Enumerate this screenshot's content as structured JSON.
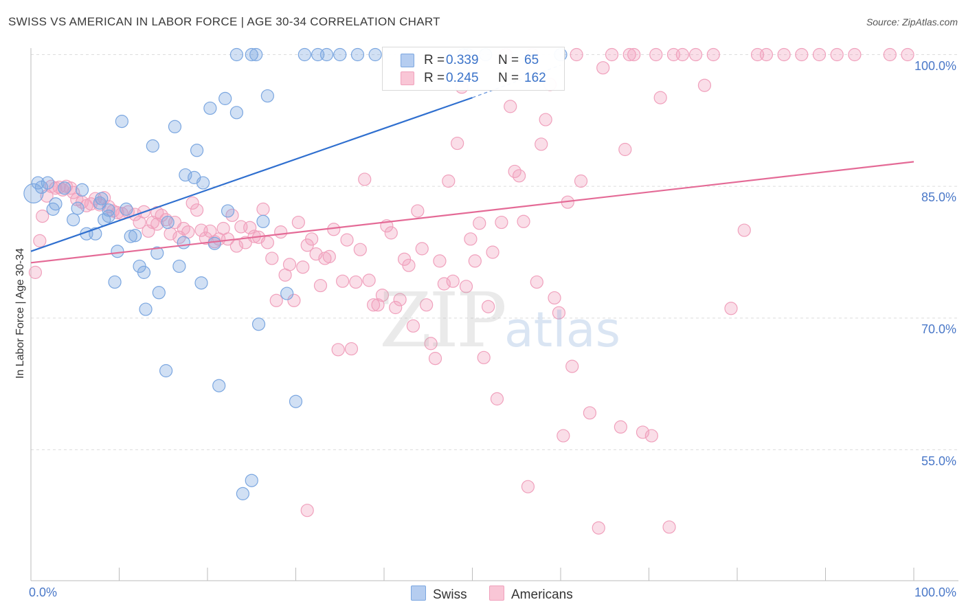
{
  "header": {
    "title": "SWISS VS AMERICAN IN LABOR FORCE | AGE 30-34 CORRELATION CHART",
    "source": "Source: ZipAtlas.com"
  },
  "watermark": {
    "zip": "ZIP",
    "atlas": "atlas"
  },
  "legend": {
    "swiss": {
      "r_label": "R =",
      "r_value": "0.339",
      "n_label": "N =",
      "n_value": "65"
    },
    "americans": {
      "r_label": "R =",
      "r_value": "0.245",
      "n_label": "N =",
      "n_value": "162"
    }
  },
  "bottom_legend": {
    "swiss": "Swiss",
    "americans": "Americans"
  },
  "chart_data": {
    "type": "scatter",
    "xlabel": "",
    "ylabel": "In Labor Force | Age 30-34",
    "xlim": [
      0,
      100
    ],
    "ylim": [
      40,
      102
    ],
    "x_tick_labels": [
      "0.0%",
      "100.0%"
    ],
    "y_tick_labels": [
      {
        "value": 100,
        "label": "100.0%"
      },
      {
        "value": 85,
        "label": "85.0%"
      },
      {
        "value": 70,
        "label": "70.0%"
      },
      {
        "value": 55,
        "label": "55.0%"
      }
    ],
    "grid": true,
    "colors": {
      "swiss": "#7aa6e0",
      "swiss_line": "#2f6fcf",
      "americans": "#f0a0bc",
      "americans_line": "#e46a96"
    },
    "series": [
      {
        "name": "Swiss",
        "trendline": {
          "x": [
            0,
            50
          ],
          "y": [
            77.6,
            95.1
          ],
          "dashed_to": [
            60,
            98.8
          ]
        },
        "points": [
          [
            0.3,
            84.2
          ],
          [
            0.8,
            85.4
          ],
          [
            1.2,
            84.9
          ],
          [
            1.9,
            85.4
          ],
          [
            2.5,
            82.4
          ],
          [
            2.8,
            83.0
          ],
          [
            3.8,
            84.8
          ],
          [
            4.8,
            81.2
          ],
          [
            5.3,
            82.5
          ],
          [
            5.8,
            84.6
          ],
          [
            6.3,
            79.6
          ],
          [
            7.3,
            79.6
          ],
          [
            7.8,
            83.1
          ],
          [
            8.0,
            83.6
          ],
          [
            8.3,
            81.2
          ],
          [
            8.8,
            82.3
          ],
          [
            8.8,
            81.6
          ],
          [
            9.5,
            74.1
          ],
          [
            9.8,
            77.6
          ],
          [
            10.3,
            92.4
          ],
          [
            10.8,
            82.4
          ],
          [
            11.3,
            79.3
          ],
          [
            11.8,
            79.4
          ],
          [
            12.3,
            75.9
          ],
          [
            12.8,
            75.2
          ],
          [
            13.0,
            71.0
          ],
          [
            13.8,
            89.6
          ],
          [
            14.3,
            77.4
          ],
          [
            14.5,
            72.9
          ],
          [
            15.3,
            64.0
          ],
          [
            15.5,
            80.9
          ],
          [
            16.3,
            91.8
          ],
          [
            16.8,
            75.9
          ],
          [
            17.3,
            78.6
          ],
          [
            17.5,
            86.3
          ],
          [
            18.5,
            86.0
          ],
          [
            18.8,
            89.1
          ],
          [
            19.3,
            74.0
          ],
          [
            19.5,
            85.4
          ],
          [
            20.3,
            93.9
          ],
          [
            20.8,
            78.5
          ],
          [
            21.3,
            62.3
          ],
          [
            22.0,
            95.0
          ],
          [
            22.3,
            82.2
          ],
          [
            23.3,
            100.0
          ],
          [
            23.3,
            93.4
          ],
          [
            24.0,
            50.0
          ],
          [
            25.0,
            51.5
          ],
          [
            25.0,
            100.0
          ],
          [
            25.5,
            100.0
          ],
          [
            25.8,
            69.3
          ],
          [
            26.3,
            81.0
          ],
          [
            26.8,
            95.3
          ],
          [
            29.0,
            72.8
          ],
          [
            30.0,
            60.5
          ],
          [
            31.0,
            100.0
          ],
          [
            32.5,
            100.0
          ],
          [
            33.5,
            100.0
          ],
          [
            35.0,
            100.0
          ],
          [
            37.0,
            100.0
          ],
          [
            39.0,
            100.0
          ],
          [
            49.0,
            100.0
          ],
          [
            49.5,
            100.0
          ],
          [
            51.5,
            100.0
          ],
          [
            60.0,
            100.0
          ]
        ]
      },
      {
        "name": "Americans",
        "trendline": {
          "x": [
            0,
            100
          ],
          "y": [
            76.3,
            87.8
          ]
        },
        "points": [
          [
            0.5,
            75.2
          ],
          [
            1.0,
            78.8
          ],
          [
            1.3,
            81.6
          ],
          [
            1.8,
            83.9
          ],
          [
            2.3,
            85.0
          ],
          [
            2.8,
            84.8
          ],
          [
            3.2,
            84.9
          ],
          [
            3.6,
            84.6
          ],
          [
            4.0,
            85.0
          ],
          [
            4.5,
            84.8
          ],
          [
            4.8,
            84.3
          ],
          [
            5.2,
            83.5
          ],
          [
            5.8,
            83.2
          ],
          [
            6.3,
            82.8
          ],
          [
            6.8,
            83.0
          ],
          [
            7.3,
            83.6
          ],
          [
            7.8,
            82.9
          ],
          [
            8.3,
            83.7
          ],
          [
            8.8,
            82.7
          ],
          [
            9.3,
            82.2
          ],
          [
            9.8,
            82.0
          ],
          [
            10.3,
            81.9
          ],
          [
            11.0,
            82.1
          ],
          [
            11.8,
            81.8
          ],
          [
            12.3,
            80.9
          ],
          [
            12.8,
            82.1
          ],
          [
            13.3,
            79.9
          ],
          [
            13.8,
            80.9
          ],
          [
            14.3,
            80.7
          ],
          [
            14.8,
            81.7
          ],
          [
            15.3,
            81.2
          ],
          [
            15.8,
            79.6
          ],
          [
            16.3,
            80.9
          ],
          [
            16.8,
            79.2
          ],
          [
            17.3,
            80.2
          ],
          [
            17.8,
            79.8
          ],
          [
            18.3,
            83.1
          ],
          [
            18.8,
            82.3
          ],
          [
            19.3,
            80.0
          ],
          [
            19.8,
            79.1
          ],
          [
            20.3,
            79.9
          ],
          [
            20.8,
            78.7
          ],
          [
            21.3,
            79.0
          ],
          [
            21.8,
            80.2
          ],
          [
            22.3,
            79.0
          ],
          [
            22.8,
            81.7
          ],
          [
            23.3,
            78.2
          ],
          [
            23.8,
            80.4
          ],
          [
            24.3,
            78.6
          ],
          [
            24.8,
            80.3
          ],
          [
            25.3,
            79.3
          ],
          [
            25.8,
            79.2
          ],
          [
            26.3,
            82.4
          ],
          [
            26.8,
            78.6
          ],
          [
            27.3,
            76.8
          ],
          [
            27.8,
            72.0
          ],
          [
            28.3,
            79.8
          ],
          [
            28.8,
            74.9
          ],
          [
            29.3,
            76.1
          ],
          [
            29.8,
            72.0
          ],
          [
            30.3,
            80.9
          ],
          [
            30.8,
            75.8
          ],
          [
            31.3,
            78.3
          ],
          [
            31.8,
            79.0
          ],
          [
            32.3,
            77.3
          ],
          [
            32.8,
            73.7
          ],
          [
            33.3,
            76.8
          ],
          [
            33.8,
            77.0
          ],
          [
            34.3,
            80.1
          ],
          [
            34.8,
            66.4
          ],
          [
            35.3,
            74.2
          ],
          [
            35.8,
            78.9
          ],
          [
            36.3,
            66.5
          ],
          [
            36.8,
            74.1
          ],
          [
            37.3,
            77.8
          ],
          [
            37.8,
            85.8
          ],
          [
            38.3,
            74.3
          ],
          [
            38.8,
            71.5
          ],
          [
            39.3,
            71.5
          ],
          [
            39.8,
            72.6
          ],
          [
            40.3,
            80.5
          ],
          [
            40.8,
            79.7
          ],
          [
            41.3,
            71.2
          ],
          [
            41.8,
            72.1
          ],
          [
            42.3,
            76.7
          ],
          [
            42.8,
            76.0
          ],
          [
            43.3,
            69.1
          ],
          [
            43.8,
            82.2
          ],
          [
            44.3,
            77.9
          ],
          [
            44.8,
            71.5
          ],
          [
            45.3,
            67.1
          ],
          [
            45.8,
            65.4
          ],
          [
            46.3,
            76.5
          ],
          [
            46.8,
            73.9
          ],
          [
            47.3,
            85.6
          ],
          [
            47.8,
            74.2
          ],
          [
            48.3,
            89.9
          ],
          [
            48.8,
            96.3
          ],
          [
            49.3,
            73.6
          ],
          [
            49.8,
            79.0
          ],
          [
            50.3,
            76.5
          ],
          [
            50.8,
            80.8
          ],
          [
            51.3,
            65.5
          ],
          [
            51.8,
            71.3
          ],
          [
            52.3,
            77.5
          ],
          [
            52.8,
            60.8
          ],
          [
            53.3,
            80.9
          ],
          [
            53.8,
            100.0
          ],
          [
            54.3,
            94.1
          ],
          [
            54.8,
            86.7
          ],
          [
            55.3,
            86.2
          ],
          [
            55.8,
            81.0
          ],
          [
            56.3,
            50.8
          ],
          [
            56.8,
            100.0
          ],
          [
            57.3,
            74.1
          ],
          [
            57.8,
            89.8
          ],
          [
            58.3,
            92.6
          ],
          [
            58.8,
            96.6
          ],
          [
            59.3,
            72.3
          ],
          [
            59.8,
            70.6
          ],
          [
            60.3,
            56.6
          ],
          [
            60.8,
            83.2
          ],
          [
            61.3,
            64.5
          ],
          [
            61.8,
            100.0
          ],
          [
            62.3,
            85.6
          ],
          [
            63.3,
            59.2
          ],
          [
            64.3,
            46.1
          ],
          [
            64.8,
            98.5
          ],
          [
            65.8,
            100.0
          ],
          [
            66.8,
            57.6
          ],
          [
            67.3,
            89.2
          ],
          [
            67.8,
            100.0
          ],
          [
            68.3,
            100.0
          ],
          [
            69.3,
            57.0
          ],
          [
            70.3,
            56.6
          ],
          [
            70.8,
            100.0
          ],
          [
            71.3,
            95.1
          ],
          [
            72.3,
            46.2
          ],
          [
            72.8,
            100.0
          ],
          [
            73.8,
            100.0
          ],
          [
            75.3,
            100.0
          ],
          [
            76.3,
            96.5
          ],
          [
            77.3,
            100.0
          ],
          [
            79.3,
            71.1
          ],
          [
            80.8,
            80.0
          ],
          [
            82.3,
            100.0
          ],
          [
            83.3,
            100.0
          ],
          [
            85.3,
            100.0
          ],
          [
            87.3,
            100.0
          ],
          [
            89.3,
            100.0
          ],
          [
            91.3,
            100.0
          ],
          [
            93.3,
            100.0
          ],
          [
            97.3,
            100.0
          ],
          [
            99.3,
            100.0
          ],
          [
            31.3,
            48.1
          ],
          [
            14.3,
            82.0
          ]
        ]
      }
    ]
  }
}
